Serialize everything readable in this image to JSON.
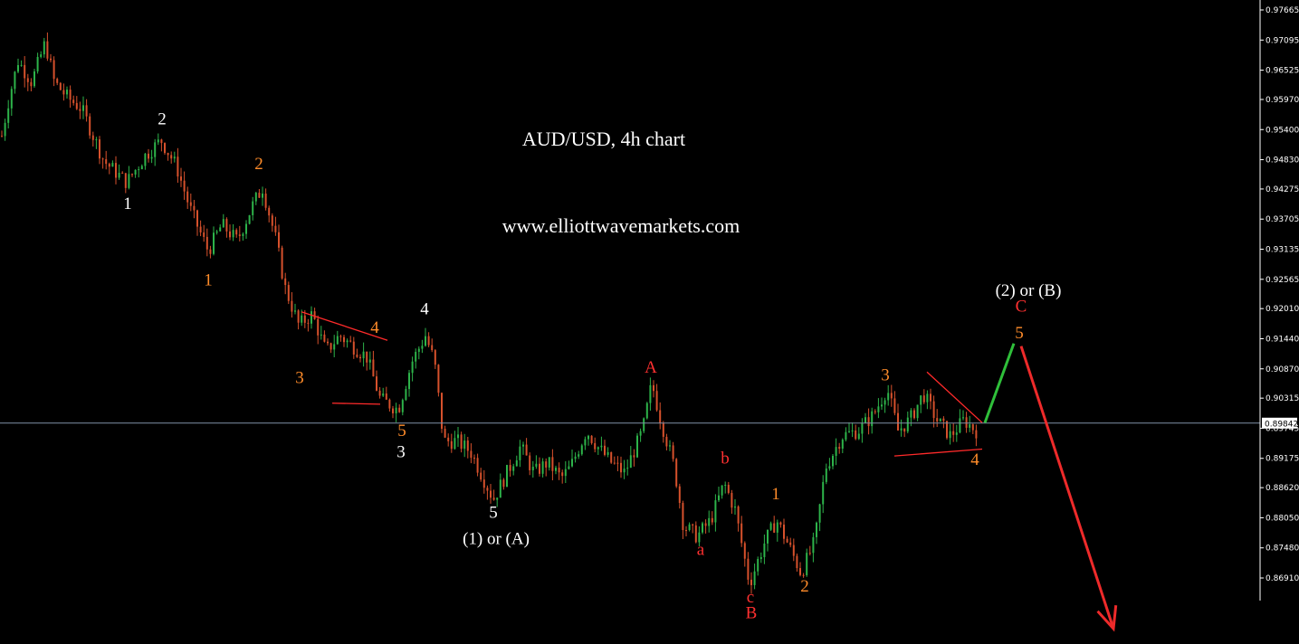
{
  "colors": {
    "background": "#000000",
    "bull_candle": "#2db34a",
    "bear_candle": "#d6512c",
    "white_label": "#ffffff",
    "orange_label": "#ff8c2a",
    "red_label": "#ff3030",
    "trendline": "#ff2a2a",
    "projection_up": "#2fbf3a",
    "projection_down": "#ee2a2a",
    "price_line": "#7f8fa8",
    "current_price_bg": "#ffffff"
  },
  "chart_data": {
    "type": "candlestick",
    "title": "AUD/USD, 4h chart",
    "subtitle": "www.elliottwavemarkets.com",
    "y_ticks": [
      "0.97665",
      "0.97095",
      "0.96525",
      "0.95970",
      "0.95400",
      "0.94830",
      "0.94275",
      "0.93705",
      "0.93135",
      "0.92565",
      "0.92010",
      "0.91440",
      "0.90870",
      "0.90315",
      "0.89745",
      "0.89175",
      "0.88620",
      "0.88050",
      "0.87480",
      "0.86910"
    ],
    "ylim": [
      0.8656,
      0.9782
    ],
    "current_price": "0.89842",
    "path": [
      [
        0,
        0.951
      ],
      [
        10,
        0.96
      ],
      [
        20,
        0.967
      ],
      [
        35,
        0.963
      ],
      [
        50,
        0.9705
      ],
      [
        60,
        0.963
      ],
      [
        75,
        0.96
      ],
      [
        90,
        0.958
      ],
      [
        100,
        0.954
      ],
      [
        115,
        0.948
      ],
      [
        140,
        0.944
      ],
      [
        160,
        0.949
      ],
      [
        178,
        0.952
      ],
      [
        195,
        0.947
      ],
      [
        210,
        0.939
      ],
      [
        230,
        0.931
      ],
      [
        245,
        0.936
      ],
      [
        262,
        0.933
      ],
      [
        280,
        0.94
      ],
      [
        290,
        0.943
      ],
      [
        305,
        0.933
      ],
      [
        315,
        0.924
      ],
      [
        330,
        0.917
      ],
      [
        345,
        0.919
      ],
      [
        360,
        0.912
      ],
      [
        375,
        0.915
      ],
      [
        390,
        0.913
      ],
      [
        405,
        0.911
      ],
      [
        420,
        0.903
      ],
      [
        440,
        0.901
      ],
      [
        455,
        0.91
      ],
      [
        470,
        0.915
      ],
      [
        480,
        0.91
      ],
      [
        490,
        0.895
      ],
      [
        505,
        0.895
      ],
      [
        520,
        0.893
      ],
      [
        545,
        0.884
      ],
      [
        560,
        0.889
      ],
      [
        575,
        0.894
      ],
      [
        590,
        0.889
      ],
      [
        605,
        0.891
      ],
      [
        620,
        0.888
      ],
      [
        630,
        0.89
      ],
      [
        648,
        0.897
      ],
      [
        660,
        0.894
      ],
      [
        675,
        0.891
      ],
      [
        690,
        0.889
      ],
      [
        710,
        0.897
      ],
      [
        720,
        0.906
      ],
      [
        730,
        0.899
      ],
      [
        745,
        0.89
      ],
      [
        755,
        0.879
      ],
      [
        770,
        0.877
      ],
      [
        785,
        0.88
      ],
      [
        800,
        0.887
      ],
      [
        812,
        0.882
      ],
      [
        828,
        0.868
      ],
      [
        845,
        0.876
      ],
      [
        858,
        0.88
      ],
      [
        872,
        0.875
      ],
      [
        885,
        0.87
      ],
      [
        900,
        0.876
      ],
      [
        912,
        0.89
      ],
      [
        930,
        0.896
      ],
      [
        948,
        0.897
      ],
      [
        965,
        0.9
      ],
      [
        980,
        0.905
      ],
      [
        992,
        0.897
      ],
      [
        1005,
        0.899
      ],
      [
        1020,
        0.904
      ],
      [
        1035,
        0.899
      ],
      [
        1050,
        0.896
      ],
      [
        1065,
        0.899
      ],
      [
        1078,
        0.897
      ]
    ],
    "wave_labels": [
      {
        "text": "2",
        "x": 179,
        "price": 0.955,
        "color": "white"
      },
      {
        "text": "1",
        "x": 141,
        "price": 0.939,
        "color": "white"
      },
      {
        "text": "2",
        "x": 286,
        "price": 0.9465,
        "color": "orange"
      },
      {
        "text": "1",
        "x": 230,
        "price": 0.9245,
        "color": "orange"
      },
      {
        "text": "4",
        "x": 414,
        "price": 0.9155,
        "color": "orange"
      },
      {
        "text": "4",
        "x": 469,
        "price": 0.919,
        "color": "white"
      },
      {
        "text": "3",
        "x": 331,
        "price": 0.906,
        "color": "orange"
      },
      {
        "text": "5",
        "x": 444,
        "price": 0.896,
        "color": "orange"
      },
      {
        "text": "3",
        "x": 443,
        "price": 0.892,
        "color": "white"
      },
      {
        "text": "5",
        "x": 545,
        "price": 0.8805,
        "color": "white"
      },
      {
        "text": "(1) or (A)",
        "x": 548,
        "price": 0.8755,
        "color": "white"
      },
      {
        "text": "A",
        "x": 719,
        "price": 0.908,
        "color": "red"
      },
      {
        "text": "b",
        "x": 801,
        "price": 0.8908,
        "color": "red"
      },
      {
        "text": "a",
        "x": 774,
        "price": 0.8735,
        "color": "red"
      },
      {
        "text": "c",
        "x": 829,
        "price": 0.8645,
        "color": "red"
      },
      {
        "text": "B",
        "x": 830,
        "price": 0.8615,
        "color": "red"
      },
      {
        "text": "1",
        "x": 857,
        "price": 0.884,
        "color": "orange"
      },
      {
        "text": "2",
        "x": 889,
        "price": 0.8665,
        "color": "orange"
      },
      {
        "text": "3",
        "x": 978,
        "price": 0.9065,
        "color": "orange"
      },
      {
        "text": "4",
        "x": 1077,
        "price": 0.8905,
        "color": "orange"
      },
      {
        "text": "(2) or (B)",
        "x": 1136,
        "price": 0.9225,
        "color": "white"
      },
      {
        "text": "C",
        "x": 1128,
        "price": 0.9195,
        "color": "red"
      },
      {
        "text": "5",
        "x": 1126,
        "price": 0.9145,
        "color": "orange"
      }
    ],
    "trendlines": [
      {
        "name": "triangle-upper-1",
        "points": [
          [
            333,
            0.9195
          ],
          [
            428,
            0.9141
          ]
        ]
      },
      {
        "name": "triangle-lower-1",
        "points": [
          [
            367,
            0.9022
          ],
          [
            420,
            0.902
          ]
        ]
      },
      {
        "name": "triangle-upper-2",
        "points": [
          [
            1024,
            0.9081
          ],
          [
            1085,
            0.8985
          ]
        ]
      },
      {
        "name": "triangle-lower-2",
        "points": [
          [
            988,
            0.8922
          ],
          [
            1085,
            0.8935
          ]
        ]
      }
    ],
    "projection_up": [
      [
        1088,
        0.8985
      ],
      [
        1120,
        0.9135
      ]
    ],
    "projection_down": [
      [
        1128,
        0.913
      ],
      [
        1230,
        0.8595
      ]
    ]
  }
}
